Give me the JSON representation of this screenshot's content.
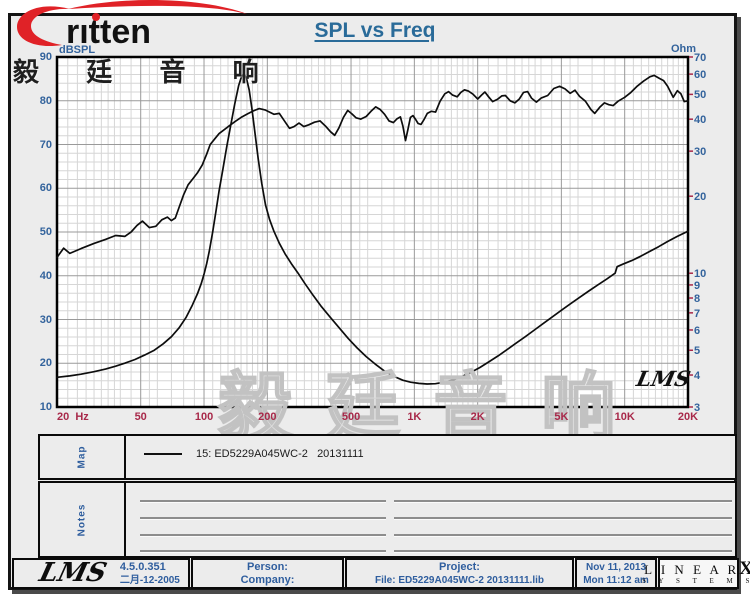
{
  "header": {
    "title": "SPL vs Freq",
    "logo_text": "rıtten",
    "logo_cn": "毅 廷 音 响"
  },
  "watermark": "毅 廷 音 响",
  "map_panel": {
    "label": "Map",
    "legend": "15: ED5229A045WC-2   20131111"
  },
  "notes_panel": {
    "label": "Notes"
  },
  "footer": {
    "lms_logo": "LMS",
    "version": "4.5.0.351",
    "version_date": "二月-12-2005",
    "person_label": "Person:",
    "company_label": "Company:",
    "project_label": "Project:",
    "file_label": "File: ED5229A045WC-2 20131111.lib",
    "date": "Nov 11, 2013",
    "time": "Mon 11:12 am",
    "brand_line1": "L I N E A R",
    "brand_x": "X",
    "brand_line2": "S Y S T E M S"
  },
  "chart_data": {
    "type": "line",
    "title": "SPL vs Freq",
    "inner_logo": "LMS",
    "grid": "log-x, linear-left-y (2 dB minor / 10 dB major), log-right-y",
    "x_axis": {
      "label": "Hz",
      "scale": "log",
      "min": 20,
      "max": 20000,
      "tick_values": [
        20,
        50,
        100,
        200,
        500,
        1000,
        2000,
        5000,
        10000,
        20000
      ],
      "tick_labels": [
        "20",
        "50",
        "100",
        "200",
        "500",
        "1K",
        "2K",
        "5K",
        "10K",
        "20K"
      ],
      "unit_suffix_on_first": "Hz",
      "minor_multipliers": [
        1,
        1.125,
        1.25,
        1.375,
        1.5,
        1.625,
        1.75,
        1.875,
        2,
        2.25,
        2.5,
        2.75,
        3,
        3.5,
        4,
        4.5,
        5,
        5.5,
        6,
        6.5,
        7,
        7.5,
        8,
        8.5,
        9,
        9.5
      ]
    },
    "y_left": {
      "label": "dBSPL",
      "scale": "linear",
      "min": 10,
      "max": 90,
      "major_step": 10,
      "minor_step": 2,
      "tick_values": [
        90,
        80,
        70,
        60,
        50,
        40,
        30,
        20,
        10
      ]
    },
    "y_right": {
      "label": "Ohm",
      "scale": "log",
      "min": 3,
      "max": 70,
      "tick_values": [
        70,
        60,
        50,
        40,
        30,
        20,
        10,
        9,
        8,
        7,
        6,
        5,
        4,
        3
      ]
    },
    "colors": {
      "curve": "#0d0d0d",
      "grid_minor": "#d6d6d6",
      "grid_major": "#9a9a9a",
      "freq_label": "#a8294a",
      "axis_label": "#33639c",
      "frame": "#000000"
    },
    "series": [
      {
        "name": "SPL  15: ED5229A045WC-2 20131111",
        "axis": "left",
        "unit": "dBSPL",
        "points": [
          [
            20,
            44.2
          ],
          [
            21.5,
            46.3
          ],
          [
            23,
            45.1
          ],
          [
            26,
            46.2
          ],
          [
            30,
            47.4
          ],
          [
            34,
            48.3
          ],
          [
            38,
            49.2
          ],
          [
            42,
            49.0
          ],
          [
            45,
            50.0
          ],
          [
            48,
            51.5
          ],
          [
            51,
            52.5
          ],
          [
            55,
            51.0
          ],
          [
            59,
            51.3
          ],
          [
            63,
            52.8
          ],
          [
            67,
            53.4
          ],
          [
            70,
            52.6
          ],
          [
            73,
            53.2
          ],
          [
            76,
            55.5
          ],
          [
            80,
            58.5
          ],
          [
            84,
            60.8
          ],
          [
            88,
            62.0
          ],
          [
            93,
            63.5
          ],
          [
            98,
            65.3
          ],
          [
            103,
            67.8
          ],
          [
            107,
            70.0
          ],
          [
            112,
            71.2
          ],
          [
            118,
            72.5
          ],
          [
            125,
            73.4
          ],
          [
            132,
            74.3
          ],
          [
            141,
            75.3
          ],
          [
            150,
            76.2
          ],
          [
            161,
            77.0
          ],
          [
            172,
            77.7
          ],
          [
            183,
            78.2
          ],
          [
            195,
            77.9
          ],
          [
            205,
            77.4
          ],
          [
            215,
            76.9
          ],
          [
            228,
            77.1
          ],
          [
            242,
            75.3
          ],
          [
            255,
            73.7
          ],
          [
            268,
            74.1
          ],
          [
            283,
            74.9
          ],
          [
            298,
            74.1
          ],
          [
            315,
            74.5
          ],
          [
            335,
            75.1
          ],
          [
            356,
            75.4
          ],
          [
            378,
            74.2
          ],
          [
            400,
            72.9
          ],
          [
            418,
            72.1
          ],
          [
            438,
            73.8
          ],
          [
            460,
            76.2
          ],
          [
            482,
            77.8
          ],
          [
            505,
            77.0
          ],
          [
            528,
            76.1
          ],
          [
            556,
            75.8
          ],
          [
            590,
            76.4
          ],
          [
            622,
            77.6
          ],
          [
            655,
            78.6
          ],
          [
            688,
            78.0
          ],
          [
            722,
            76.9
          ],
          [
            758,
            75.4
          ],
          [
            795,
            75.0
          ],
          [
            828,
            75.9
          ],
          [
            858,
            76.3
          ],
          [
            882,
            74.2
          ],
          [
            908,
            70.9
          ],
          [
            932,
            73.4
          ],
          [
            958,
            76.2
          ],
          [
            985,
            76.6
          ],
          [
            1012,
            75.8
          ],
          [
            1042,
            74.8
          ],
          [
            1075,
            74.6
          ],
          [
            1112,
            75.7
          ],
          [
            1152,
            77.1
          ],
          [
            1205,
            77.6
          ],
          [
            1262,
            77.4
          ],
          [
            1325,
            79.9
          ],
          [
            1395,
            81.6
          ],
          [
            1455,
            82.1
          ],
          [
            1520,
            81.3
          ],
          [
            1598,
            80.9
          ],
          [
            1662,
            81.9
          ],
          [
            1732,
            82.5
          ],
          [
            1808,
            82.2
          ],
          [
            1900,
            81.5
          ],
          [
            2000,
            80.4
          ],
          [
            2085,
            81.3
          ],
          [
            2165,
            82.0
          ],
          [
            2255,
            80.9
          ],
          [
            2355,
            79.8
          ],
          [
            2480,
            80.3
          ],
          [
            2605,
            81.1
          ],
          [
            2710,
            81.2
          ],
          [
            2855,
            80.0
          ],
          [
            3005,
            79.5
          ],
          [
            3155,
            80.4
          ],
          [
            3305,
            81.9
          ],
          [
            3455,
            82.1
          ],
          [
            3605,
            80.6
          ],
          [
            3805,
            79.7
          ],
          [
            4005,
            80.6
          ],
          [
            4305,
            81.2
          ],
          [
            4605,
            82.8
          ],
          [
            4905,
            83.3
          ],
          [
            5205,
            82.7
          ],
          [
            5505,
            81.7
          ],
          [
            5805,
            82.4
          ],
          [
            6105,
            81.0
          ],
          [
            6505,
            79.9
          ],
          [
            6905,
            78.0
          ],
          [
            7205,
            77.1
          ],
          [
            7605,
            78.5
          ],
          [
            8005,
            79.5
          ],
          [
            8405,
            79.1
          ],
          [
            8805,
            78.9
          ],
          [
            9305,
            79.9
          ],
          [
            10005,
            80.8
          ],
          [
            10705,
            81.9
          ],
          [
            11505,
            83.4
          ],
          [
            12305,
            84.5
          ],
          [
            13205,
            85.5
          ],
          [
            13805,
            85.8
          ],
          [
            14505,
            85.2
          ],
          [
            15305,
            84.6
          ],
          [
            16005,
            83.3
          ],
          [
            17005,
            80.8
          ],
          [
            17805,
            82.3
          ],
          [
            18505,
            81.6
          ],
          [
            19205,
            79.8
          ],
          [
            20000,
            80.0
          ]
        ]
      },
      {
        "name": "Impedance",
        "axis": "right",
        "unit": "Ohm",
        "points": [
          [
            20,
            3.92
          ],
          [
            23,
            3.97
          ],
          [
            26,
            4.03
          ],
          [
            30,
            4.12
          ],
          [
            34,
            4.22
          ],
          [
            38,
            4.33
          ],
          [
            42,
            4.45
          ],
          [
            47,
            4.6
          ],
          [
            52,
            4.78
          ],
          [
            58,
            5.0
          ],
          [
            64,
            5.3
          ],
          [
            70,
            5.65
          ],
          [
            76,
            6.1
          ],
          [
            82,
            6.7
          ],
          [
            88,
            7.5
          ],
          [
            93,
            8.3
          ],
          [
            97,
            9.1
          ],
          [
            100,
            9.9
          ],
          [
            103,
            10.9
          ],
          [
            106,
            12.2
          ],
          [
            110,
            14.5
          ],
          [
            114,
            17.5
          ],
          [
            118,
            21
          ],
          [
            123,
            25.5
          ],
          [
            128,
            31
          ],
          [
            134,
            38
          ],
          [
            140,
            46
          ],
          [
            146,
            54
          ],
          [
            151,
            59
          ],
          [
            155,
            60
          ],
          [
            159,
            58
          ],
          [
            164,
            52
          ],
          [
            169,
            44
          ],
          [
            175,
            35
          ],
          [
            181,
            28
          ],
          [
            188,
            22.5
          ],
          [
            196,
            18.5
          ],
          [
            205,
            16.2
          ],
          [
            215,
            14.6
          ],
          [
            228,
            13.1
          ],
          [
            243,
            11.9
          ],
          [
            260,
            10.9
          ],
          [
            280,
            10.0
          ],
          [
            302,
            9.1
          ],
          [
            330,
            8.2
          ],
          [
            362,
            7.4
          ],
          [
            400,
            6.7
          ],
          [
            440,
            6.1
          ],
          [
            485,
            5.55
          ],
          [
            535,
            5.1
          ],
          [
            590,
            4.72
          ],
          [
            650,
            4.42
          ],
          [
            720,
            4.15
          ],
          [
            800,
            3.95
          ],
          [
            880,
            3.82
          ],
          [
            960,
            3.75
          ],
          [
            1050,
            3.71
          ],
          [
            1150,
            3.69
          ],
          [
            1260,
            3.7
          ],
          [
            1390,
            3.75
          ],
          [
            1530,
            3.83
          ],
          [
            1690,
            3.95
          ],
          [
            1860,
            4.1
          ],
          [
            2050,
            4.28
          ],
          [
            2260,
            4.5
          ],
          [
            2500,
            4.75
          ],
          [
            2760,
            5.03
          ],
          [
            3050,
            5.33
          ],
          [
            3370,
            5.65
          ],
          [
            3720,
            6.0
          ],
          [
            4110,
            6.37
          ],
          [
            4540,
            6.76
          ],
          [
            5010,
            7.17
          ],
          [
            5530,
            7.6
          ],
          [
            6110,
            8.05
          ],
          [
            6750,
            8.52
          ],
          [
            7450,
            9.0
          ],
          [
            8230,
            9.5
          ],
          [
            9000,
            10.0
          ],
          [
            9200,
            10.6
          ],
          [
            9800,
            10.85
          ],
          [
            10800,
            11.2
          ],
          [
            11900,
            11.65
          ],
          [
            13100,
            12.15
          ],
          [
            14500,
            12.7
          ],
          [
            16000,
            13.3
          ],
          [
            17700,
            13.9
          ],
          [
            20000,
            14.6
          ]
        ]
      }
    ]
  }
}
